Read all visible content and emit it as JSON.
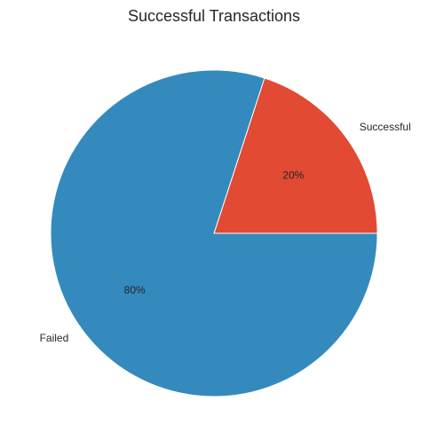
{
  "chart_data": {
    "type": "pie",
    "title": "Successful Transactions",
    "categories": [
      "Successful",
      "Failed"
    ],
    "values": [
      20,
      80
    ],
    "percent_labels": [
      "20%",
      "80%"
    ],
    "colors": [
      "#E24A33",
      "#348ABD"
    ],
    "start_angle_deg": 0,
    "direction": "counterclockwise"
  }
}
